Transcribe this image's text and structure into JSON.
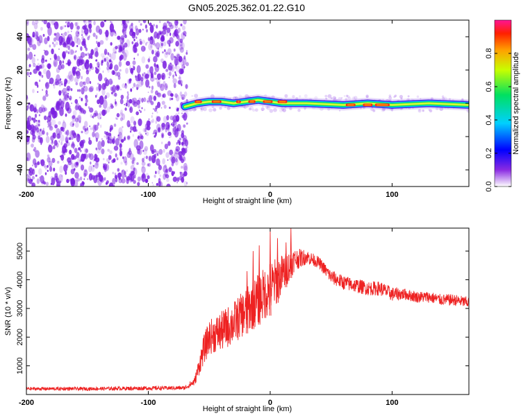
{
  "title": "GN05.2025.362.01.22.G10",
  "colors": {
    "series": "#ee2222",
    "speckle": "#7a1fe0",
    "axis": "#000000"
  },
  "chart_data": [
    {
      "type": "heatmap",
      "xlabel": "Height of straight line (km)",
      "ylabel": "Frequency (Hz)",
      "xlim": [
        -200,
        163
      ],
      "ylim": [
        -50,
        50
      ],
      "xticks": [
        -200,
        -100,
        0,
        100
      ],
      "xtick_labels": [
        "-200",
        "-100",
        "0",
        "100"
      ],
      "yticks": [
        -40,
        -20,
        0,
        20,
        40
      ],
      "ytick_labels": [
        "-40",
        "-20",
        "0",
        "20",
        "40"
      ],
      "noise_region_x": [
        -200,
        -68
      ],
      "ridge_points": [
        {
          "x": -70,
          "f": -2
        },
        {
          "x": -60,
          "f": 0
        },
        {
          "x": -50,
          "f": 1
        },
        {
          "x": -40,
          "f": 1
        },
        {
          "x": -30,
          "f": 0
        },
        {
          "x": -20,
          "f": 1
        },
        {
          "x": -10,
          "f": 2
        },
        {
          "x": 0,
          "f": 1
        },
        {
          "x": 10,
          "f": 0
        },
        {
          "x": 30,
          "f": 0
        },
        {
          "x": 60,
          "f": -1
        },
        {
          "x": 80,
          "f": 0
        },
        {
          "x": 100,
          "f": -1
        },
        {
          "x": 130,
          "f": 0
        },
        {
          "x": 163,
          "f": -1
        }
      ],
      "colorbar": {
        "label": "Normalized spectral amplitude",
        "range": [
          0,
          1
        ],
        "ticks": [
          "0.0",
          "0.2",
          "0.4",
          "0.6",
          "0.8"
        ]
      }
    },
    {
      "type": "line",
      "xlabel": "Height of straight line (km)",
      "ylabel": "SNR (10 * v/v)",
      "xlim": [
        -200,
        163
      ],
      "ylim": [
        0,
        5800
      ],
      "xticks": [
        -200,
        -100,
        0,
        100
      ],
      "xtick_labels": [
        "-200",
        "-100",
        "0",
        "100"
      ],
      "yticks": [
        1000,
        2000,
        3000,
        4000,
        5000
      ],
      "ytick_labels": [
        "1000",
        "2000",
        "3000",
        "4000",
        "5000"
      ],
      "series": [
        {
          "name": "SNR",
          "envelope_x": [
            -200,
            -150,
            -100,
            -70,
            -62,
            -55,
            -50,
            -40,
            -30,
            -20,
            -10,
            0,
            10,
            20,
            30,
            40,
            50,
            60,
            70,
            80,
            90,
            100,
            110,
            120,
            130,
            140,
            150,
            163
          ],
          "envelope_y": [
            200,
            200,
            220,
            230,
            450,
            1500,
            2000,
            2200,
            2500,
            2900,
            3300,
            3700,
            4200,
            4700,
            4800,
            4600,
            4100,
            3900,
            3800,
            3700,
            3700,
            3500,
            3500,
            3400,
            3400,
            3300,
            3300,
            3200
          ],
          "noise_amplitude_y": [
            60,
            60,
            70,
            70,
            150,
            500,
            600,
            700,
            750,
            800,
            900,
            950,
            700,
            400,
            250,
            200,
            250,
            250,
            250,
            250,
            250,
            250,
            200,
            200,
            200,
            200,
            200,
            200
          ],
          "spikes": [
            {
              "x": -19,
              "y": 4300
            },
            {
              "x": -14,
              "y": 5000
            },
            {
              "x": -9,
              "y": 5200
            },
            {
              "x": 0,
              "y": 5700
            },
            {
              "x": 6,
              "y": 5450
            },
            {
              "x": 13,
              "y": 5300
            },
            {
              "x": 17,
              "y": 5800
            }
          ]
        }
      ]
    }
  ]
}
